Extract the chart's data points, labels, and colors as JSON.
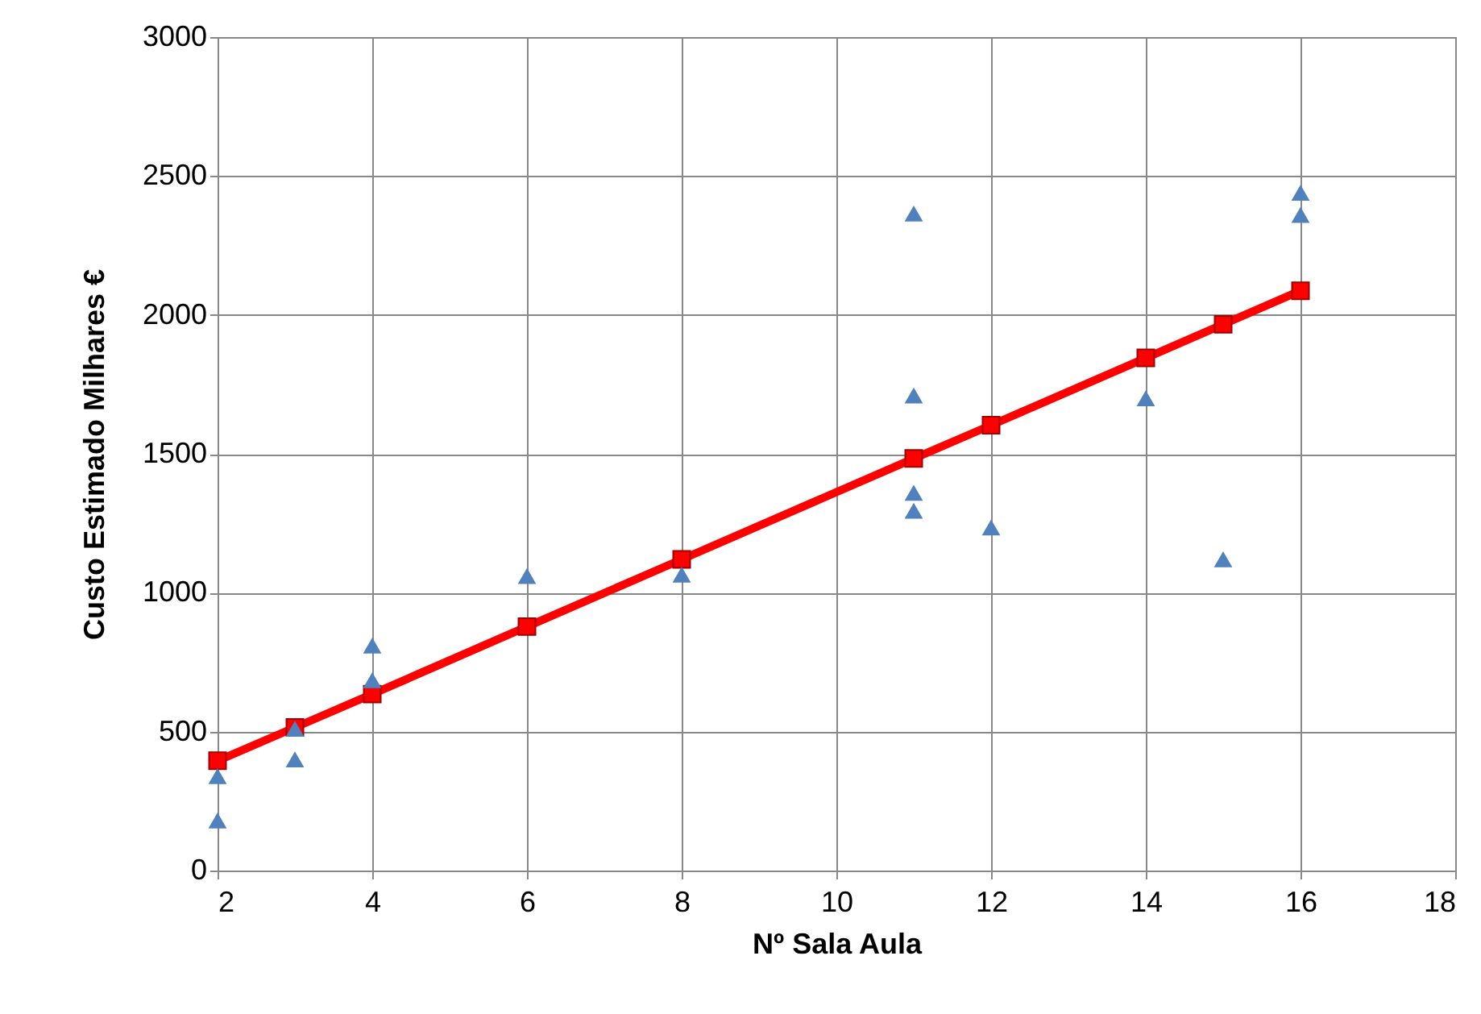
{
  "chart_data": {
    "type": "scatter",
    "xlabel": "Nº Sala Aula",
    "ylabel": "Custo Estimado Milhares €",
    "xlim": [
      2,
      18
    ],
    "xticks": [
      2,
      4,
      6,
      8,
      10,
      12,
      14,
      16,
      18
    ],
    "ylim": [
      0,
      3000
    ],
    "yticks": [
      0,
      500,
      1000,
      1500,
      2000,
      2500,
      3000
    ],
    "grid": true,
    "series": [
      {
        "color": "#4f81bd",
        "marker": "triangle",
        "x": [
          2,
          2,
          3,
          3,
          4,
          4,
          6,
          8,
          11,
          11,
          11,
          11,
          12,
          14,
          15,
          16,
          16
        ],
        "values": [
          340,
          180,
          510,
          400,
          810,
          685,
          1060,
          1065,
          2365,
          1710,
          1360,
          1295,
          1235,
          1700,
          1120,
          2440,
          2360
        ]
      },
      {
        "type": "line",
        "color": "#ff0000",
        "marker": "square",
        "line_style": "solid",
        "x": [
          2,
          3,
          4,
          6,
          8,
          11,
          12,
          14,
          15,
          16
        ],
        "values": [
          395,
          515,
          635,
          878,
          1120,
          1483,
          1603,
          1845,
          1966,
          2087
        ]
      }
    ]
  }
}
